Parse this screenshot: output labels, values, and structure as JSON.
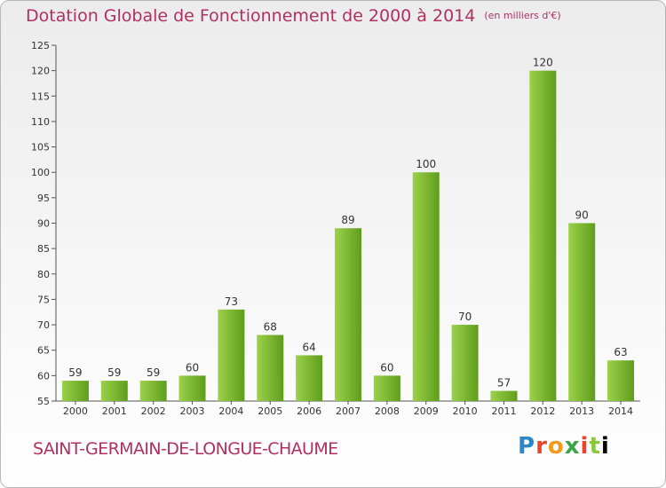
{
  "title": "Dotation Globale de Fonctionnement de 2000 à 2014",
  "subtitle": "(en milliers d'€)",
  "commune": "SAINT-GERMAIN-DE-LONGUE-CHAUME",
  "logo": "Proxiti",
  "colors": {
    "title": "#b03060",
    "bar_light": "#9cd14a",
    "bar_dark": "#5e9d1c",
    "axis": "#555555"
  },
  "chart_data": {
    "type": "bar",
    "categories": [
      "2000",
      "2001",
      "2002",
      "2003",
      "2004",
      "2005",
      "2006",
      "2007",
      "2008",
      "2009",
      "2010",
      "2011",
      "2012",
      "2013",
      "2014"
    ],
    "values": [
      59,
      59,
      59,
      60,
      73,
      68,
      64,
      89,
      60,
      100,
      70,
      57,
      120,
      90,
      63
    ],
    "ylim": [
      55,
      125
    ],
    "yticks": [
      55,
      60,
      65,
      70,
      75,
      80,
      85,
      90,
      95,
      100,
      105,
      110,
      115,
      120,
      125
    ],
    "grid": false,
    "xlabel": "",
    "ylabel": ""
  }
}
